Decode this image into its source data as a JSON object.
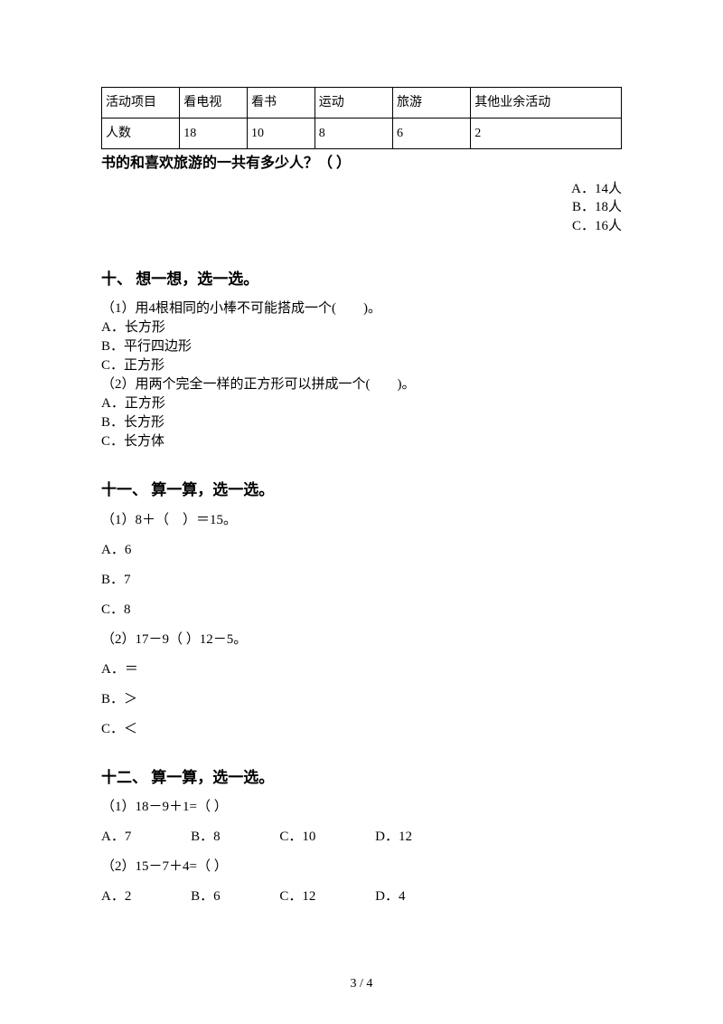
{
  "table": {
    "header": [
      "活动项目",
      "看电视",
      "看书",
      "运动",
      "旅游",
      "其他业余活动"
    ],
    "row": [
      "人数",
      "18",
      "10",
      "8",
      "6",
      "2"
    ]
  },
  "question_bold": "书的和喜欢旅游的一共有多少人？（ ）",
  "answers": {
    "a": "A．14人",
    "b": "B．18人",
    "c": "C．16人"
  },
  "sec10": {
    "title": "十、 想一想，选一选。",
    "q1": "（1）用4根相同的小棒不可能搭成一个(　　)。",
    "q1a": "A．长方形",
    "q1b": "B．平行四边形",
    "q1c": "C．正方形",
    "q2": "（2）用两个完全一样的正方形可以拼成一个(　　)。",
    "q2a": "A．正方形",
    "q2b": "B．长方形",
    "q2c": "C．长方体"
  },
  "sec11": {
    "title": "十一、 算一算，选一选。",
    "q1": "（1）8＋（　）＝15。",
    "q1a": "A．6",
    "q1b": "B．7",
    "q1c": "C．8",
    "q2": "（2）17－9（ ）12－5。",
    "q2a": "A．＝",
    "q2b": "B．＞",
    "q2c": "C．＜"
  },
  "sec12": {
    "title": "十二、 算一算，选一选。",
    "q1": "（1）18－9＋1=（ ）",
    "q1a": "A．7",
    "q1b": "B．8",
    "q1c": "C．10",
    "q1d": "D．12",
    "q2": "（2）15－7＋4=（ ）",
    "q2a": "A．2",
    "q2b": "B．6",
    "q2c": "C．12",
    "q2d": "D．4"
  },
  "footer": "3 / 4"
}
